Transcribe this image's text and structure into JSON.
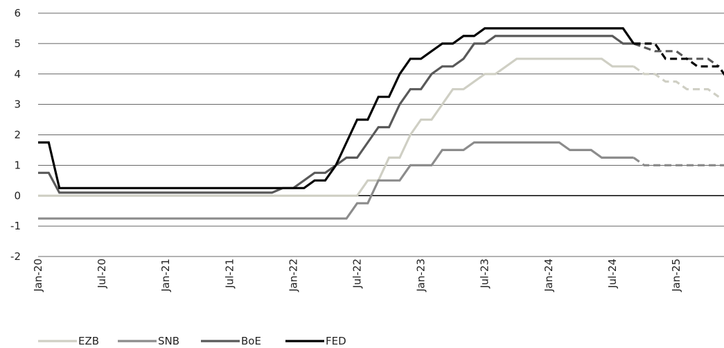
{
  "chart_data": {
    "type": "line",
    "x_type": "date",
    "ylim": [
      -2,
      6
    ],
    "xlim": [
      "2020-01",
      "2025-10"
    ],
    "grid": "horizontal",
    "legend_placement": "bottom-left",
    "yticks": [
      "6",
      "5",
      "4",
      "3",
      "2",
      "1",
      "0",
      "-1",
      "-2"
    ],
    "xticks": [
      {
        "label": "Jan-20",
        "date": "2020-01"
      },
      {
        "label": "Jul-20",
        "date": "2020-07"
      },
      {
        "label": "Jan-21",
        "date": "2021-01"
      },
      {
        "label": "Jul-21",
        "date": "2021-07"
      },
      {
        "label": "Jan-22",
        "date": "2022-01"
      },
      {
        "label": "Jul-22",
        "date": "2022-07"
      },
      {
        "label": "Jan-23",
        "date": "2023-01"
      },
      {
        "label": "Jul-23",
        "date": "2023-07"
      },
      {
        "label": "Jan-24",
        "date": "2024-01"
      },
      {
        "label": "Jul-24",
        "date": "2024-07"
      },
      {
        "label": "Jan-25",
        "date": "2025-01"
      }
    ],
    "forecast_from": "2024-09",
    "series": [
      {
        "name": "EZB",
        "color": "#cfcfc4",
        "points": [
          [
            "2020-01",
            0
          ],
          [
            "2022-07",
            0
          ],
          [
            "2022-08",
            0.5
          ],
          [
            "2022-09",
            0.5
          ],
          [
            "2022-10",
            1.25
          ],
          [
            "2022-11",
            1.25
          ],
          [
            "2022-12",
            2
          ],
          [
            "2023-01",
            2.5
          ],
          [
            "2023-02",
            2.5
          ],
          [
            "2023-03",
            3
          ],
          [
            "2023-04",
            3.5
          ],
          [
            "2023-05",
            3.5
          ],
          [
            "2023-06",
            3.75
          ],
          [
            "2023-07",
            4
          ],
          [
            "2023-08",
            4
          ],
          [
            "2023-09",
            4.25
          ],
          [
            "2023-10",
            4.5
          ],
          [
            "2024-06",
            4.5
          ],
          [
            "2024-07",
            4.25
          ],
          [
            "2024-09",
            4.25
          ],
          [
            "2024-10",
            4
          ],
          [
            "2024-11",
            4
          ],
          [
            "2024-12",
            3.75
          ],
          [
            "2025-01",
            3.75
          ],
          [
            "2025-02",
            3.5
          ],
          [
            "2025-04",
            3.5
          ],
          [
            "2025-05",
            3.25
          ]
        ]
      },
      {
        "name": "SNB",
        "color": "#8c8c8c",
        "points": [
          [
            "2020-01",
            -0.75
          ],
          [
            "2022-06",
            -0.75
          ],
          [
            "2022-07",
            -0.25
          ],
          [
            "2022-08",
            -0.25
          ],
          [
            "2022-09",
            0.5
          ],
          [
            "2022-11",
            0.5
          ],
          [
            "2022-12",
            1
          ],
          [
            "2023-02",
            1
          ],
          [
            "2023-03",
            1.5
          ],
          [
            "2023-05",
            1.5
          ],
          [
            "2023-06",
            1.75
          ],
          [
            "2024-02",
            1.75
          ],
          [
            "2024-03",
            1.5
          ],
          [
            "2024-05",
            1.5
          ],
          [
            "2024-06",
            1.25
          ],
          [
            "2024-09",
            1.25
          ],
          [
            "2024-10",
            1
          ],
          [
            "2025-10",
            1
          ]
        ]
      },
      {
        "name": "BoE",
        "color": "#595959",
        "points": [
          [
            "2020-01",
            0.75
          ],
          [
            "2020-02",
            0.75
          ],
          [
            "2020-03",
            0.1
          ],
          [
            "2021-11",
            0.1
          ],
          [
            "2021-12",
            0.25
          ],
          [
            "2022-01",
            0.25
          ],
          [
            "2022-02",
            0.5
          ],
          [
            "2022-03",
            0.75
          ],
          [
            "2022-04",
            0.75
          ],
          [
            "2022-05",
            1
          ],
          [
            "2022-06",
            1.25
          ],
          [
            "2022-07",
            1.25
          ],
          [
            "2022-08",
            1.75
          ],
          [
            "2022-09",
            2.25
          ],
          [
            "2022-10",
            2.25
          ],
          [
            "2022-11",
            3
          ],
          [
            "2022-12",
            3.5
          ],
          [
            "2023-01",
            3.5
          ],
          [
            "2023-02",
            4
          ],
          [
            "2023-03",
            4.25
          ],
          [
            "2023-04",
            4.25
          ],
          [
            "2023-05",
            4.5
          ],
          [
            "2023-06",
            5
          ],
          [
            "2023-07",
            5
          ],
          [
            "2023-08",
            5.25
          ],
          [
            "2024-07",
            5.25
          ],
          [
            "2024-08",
            5
          ],
          [
            "2024-09",
            5
          ],
          [
            "2024-11",
            4.75
          ],
          [
            "2025-01",
            4.75
          ],
          [
            "2025-02",
            4.5
          ],
          [
            "2025-04",
            4.5
          ],
          [
            "2025-05",
            4.25
          ]
        ]
      },
      {
        "name": "FED",
        "color": "#000000",
        "points": [
          [
            "2020-01",
            1.75
          ],
          [
            "2020-02",
            1.75
          ],
          [
            "2020-03",
            0.25
          ],
          [
            "2022-02",
            0.25
          ],
          [
            "2022-03",
            0.5
          ],
          [
            "2022-04",
            0.5
          ],
          [
            "2022-05",
            1
          ],
          [
            "2022-06",
            1.75
          ],
          [
            "2022-07",
            2.5
          ],
          [
            "2022-08",
            2.5
          ],
          [
            "2022-09",
            3.25
          ],
          [
            "2022-10",
            3.25
          ],
          [
            "2022-11",
            4
          ],
          [
            "2022-12",
            4.5
          ],
          [
            "2023-01",
            4.5
          ],
          [
            "2023-02",
            4.75
          ],
          [
            "2023-03",
            5
          ],
          [
            "2023-04",
            5
          ],
          [
            "2023-05",
            5.25
          ],
          [
            "2023-06",
            5.25
          ],
          [
            "2023-07",
            5.5
          ],
          [
            "2024-08",
            5.5
          ],
          [
            "2024-09",
            5
          ],
          [
            "2024-11",
            5
          ],
          [
            "2024-12",
            4.5
          ],
          [
            "2025-02",
            4.5
          ],
          [
            "2025-03",
            4.25
          ],
          [
            "2025-05",
            4.25
          ],
          [
            "2025-06",
            3.75
          ]
        ]
      }
    ]
  }
}
